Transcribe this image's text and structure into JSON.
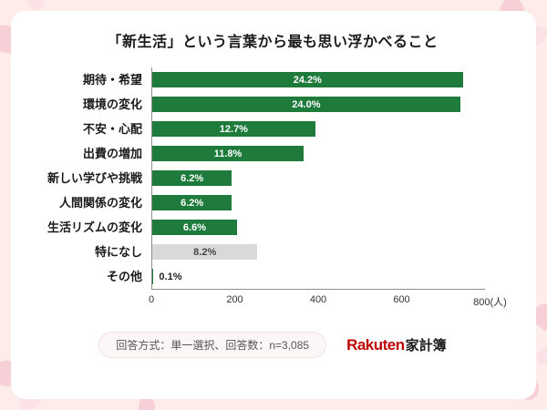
{
  "page": {
    "title": "「新生活」という言葉から最も思い浮かべること"
  },
  "chart_data": {
    "type": "bar",
    "orientation": "horizontal",
    "title": "「新生活」という言葉から最も思い浮かべること",
    "categories": [
      "期待・希望",
      "環境の変化",
      "不安・心配",
      "出費の増加",
      "新しい学びや挑戦",
      "人間関係の変化",
      "生活リズムの変化",
      "特になし",
      "その他"
    ],
    "values": [
      24.2,
      24.0,
      12.7,
      11.8,
      6.2,
      6.2,
      6.6,
      8.2,
      0.1
    ],
    "value_labels": [
      "24.2%",
      "24.0%",
      "12.7%",
      "11.8%",
      "6.2%",
      "6.2%",
      "6.6%",
      "8.2%",
      "0.1%"
    ],
    "bar_styles": [
      "primary",
      "primary",
      "primary",
      "primary",
      "primary",
      "primary",
      "primary",
      "muted",
      "primary"
    ],
    "n": 3085,
    "x_max": 800,
    "x_ticks": [
      {
        "label": "0",
        "pos": 0
      },
      {
        "label": "200",
        "pos": 25
      },
      {
        "label": "400",
        "pos": 50
      },
      {
        "label": "600",
        "pos": 75
      },
      {
        "label": "800(人)",
        "pos": 100
      }
    ],
    "xlabel": "(人)",
    "ylabel": "",
    "grid": false,
    "legend": "none",
    "colors": {
      "primary": "#1e7b3c",
      "muted": "#d9d9d9",
      "label_on_primary": "#ffffff",
      "label_on_muted": "#444444",
      "label_outside": "#222222",
      "background": "#fdecea",
      "card": "#ffffff",
      "logo_red": "#bf0000"
    }
  },
  "footer": {
    "note": "回答方式：単一選択、回答数：n=3,085",
    "logo_rakuten": "Rakuten",
    "logo_suffix": "家計簿"
  }
}
